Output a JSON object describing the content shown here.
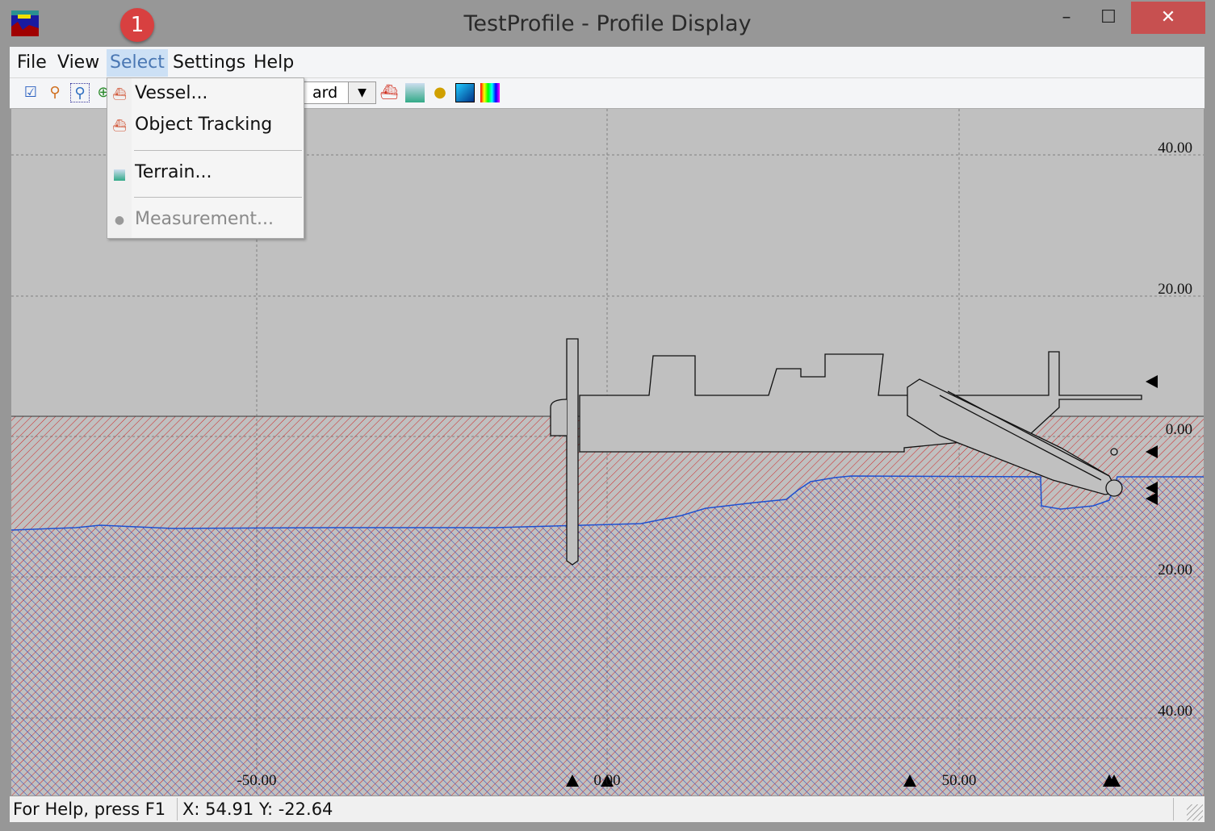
{
  "window": {
    "title": "TestProfile - Profile Display",
    "badge": "1",
    "minimize": "–",
    "maximize": "☐",
    "close": "✕"
  },
  "menubar": {
    "items": [
      {
        "label": "File"
      },
      {
        "label": "View"
      },
      {
        "label": "Select",
        "active": true
      },
      {
        "label": "Settings"
      },
      {
        "label": "Help"
      }
    ]
  },
  "toolbar": {
    "combo_value": "ard",
    "icons": [
      "checklist-icon",
      "zoom-icon",
      "zoom-window-icon",
      "zoom-in-icon",
      "vessel-icon",
      "terrain-icon",
      "measurement-icon",
      "color-gradient-icon",
      "color-palette-icon"
    ]
  },
  "select_menu": {
    "items": [
      {
        "label": "Vessel...",
        "icon": "vessel-icon",
        "enabled": true
      },
      {
        "label": "Object Tracking",
        "icon": "object-tracking-icon",
        "enabled": true
      },
      {
        "label": "Terrain...",
        "icon": "terrain-icon",
        "enabled": true
      },
      {
        "label": "Measurement...",
        "icon": "measurement-icon",
        "enabled": false
      }
    ]
  },
  "plot": {
    "y_labels": [
      "40.00",
      "20.00",
      "0.00",
      "20.00",
      "40.00"
    ],
    "x_labels": [
      "-50.00",
      "0.00",
      "50.00"
    ],
    "colors": {
      "background": "#c0c0c0",
      "water_hatch": "#d02020",
      "terrain_line": "#1e50d0",
      "grid": "#808080"
    }
  },
  "statusbar": {
    "help": "For Help, press F1",
    "coords": "X: 54.91 Y: -22.64"
  }
}
